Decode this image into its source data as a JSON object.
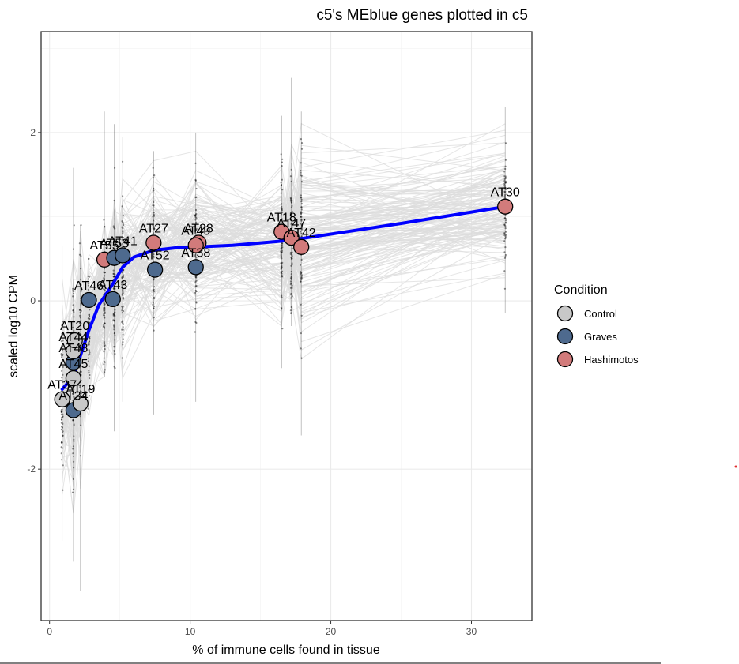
{
  "chart_data": {
    "type": "scatter",
    "title": "c5's MEblue genes plotted in c5",
    "xlabel": "% of immune cells found in tissue",
    "ylabel": "scaled log10 CPM",
    "xlim": [
      -0.6,
      34.3
    ],
    "ylim": [
      -3.8,
      3.2
    ],
    "xticks": [
      0,
      10,
      20,
      30
    ],
    "yticks": [
      -2,
      0,
      2
    ],
    "grid": true,
    "legend": {
      "title": "Condition",
      "position": "right",
      "entries": [
        {
          "name": "Control",
          "color": "#c8c8c8"
        },
        {
          "name": "Graves",
          "color": "#4e6a8e"
        },
        {
          "name": "Hashimotos",
          "color": "#d27b7b"
        }
      ]
    },
    "colors": {
      "trend": "#0000ff",
      "gene_lines": "#dcdcdc",
      "gene_points": "#000000"
    },
    "samples": [
      {
        "label": "AT37",
        "x": 0.9,
        "y": -1.17,
        "condition": "Control"
      },
      {
        "label": "AT34",
        "x": 1.7,
        "y": -1.3,
        "condition": "Graves"
      },
      {
        "label": "AT19",
        "x": 2.2,
        "y": -1.22,
        "condition": "Control"
      },
      {
        "label": "AT45",
        "x": 1.7,
        "y": -0.92,
        "condition": "Control"
      },
      {
        "label": "AT48",
        "x": 1.7,
        "y": -0.73,
        "condition": "Graves"
      },
      {
        "label": "AT44",
        "x": 1.7,
        "y": -0.6,
        "condition": "Control"
      },
      {
        "label": "AT20",
        "x": 1.8,
        "y": -0.47,
        "condition": "Control"
      },
      {
        "label": "AT46",
        "x": 2.8,
        "y": 0.01,
        "condition": "Graves"
      },
      {
        "label": "AT43",
        "x": 4.5,
        "y": 0.02,
        "condition": "Graves"
      },
      {
        "label": "AT55",
        "x": 3.9,
        "y": 0.49,
        "condition": "Hashimotos"
      },
      {
        "label": "AT53",
        "x": 4.6,
        "y": 0.51,
        "condition": "Graves"
      },
      {
        "label": "AT41",
        "x": 5.2,
        "y": 0.54,
        "condition": "Graves"
      },
      {
        "label": "AT27",
        "x": 7.4,
        "y": 0.69,
        "condition": "Hashimotos"
      },
      {
        "label": "AT52",
        "x": 7.5,
        "y": 0.37,
        "condition": "Graves"
      },
      {
        "label": "AT28",
        "x": 10.6,
        "y": 0.69,
        "condition": "Hashimotos"
      },
      {
        "label": "AT49",
        "x": 10.4,
        "y": 0.66,
        "condition": "Hashimotos"
      },
      {
        "label": "AT38",
        "x": 10.4,
        "y": 0.4,
        "condition": "Graves"
      },
      {
        "label": "AT18",
        "x": 16.5,
        "y": 0.82,
        "condition": "Hashimotos"
      },
      {
        "label": "AT47",
        "x": 17.2,
        "y": 0.75,
        "condition": "Hashimotos"
      },
      {
        "label": "AT42",
        "x": 17.9,
        "y": 0.64,
        "condition": "Hashimotos"
      },
      {
        "label": "AT30",
        "x": 32.4,
        "y": 1.12,
        "condition": "Hashimotos"
      }
    ],
    "trend": [
      [
        0.9,
        -1.05
      ],
      [
        1.7,
        -0.9
      ],
      [
        2.2,
        -0.65
      ],
      [
        2.8,
        -0.35
      ],
      [
        3.5,
        -0.05
      ],
      [
        4.5,
        0.2
      ],
      [
        5.2,
        0.4
      ],
      [
        6.0,
        0.52
      ],
      [
        7.4,
        0.6
      ],
      [
        9.0,
        0.63
      ],
      [
        10.5,
        0.64
      ],
      [
        13.0,
        0.66
      ],
      [
        16.5,
        0.71
      ],
      [
        17.9,
        0.74
      ],
      [
        25.0,
        0.92
      ],
      [
        32.4,
        1.12
      ]
    ],
    "gene_columns": [
      {
        "x": 0.9,
        "min": -2.85,
        "max": 0.65
      },
      {
        "x": 1.7,
        "min": -3.1,
        "max": 1.58
      },
      {
        "x": 2.2,
        "min": -3.45,
        "max": 0.9
      },
      {
        "x": 2.8,
        "min": -1.55,
        "max": 1.2
      },
      {
        "x": 3.9,
        "min": -0.9,
        "max": 2.25
      },
      {
        "x": 4.6,
        "min": -1.55,
        "max": 2.1
      },
      {
        "x": 5.2,
        "min": -1.2,
        "max": 1.95
      },
      {
        "x": 7.4,
        "min": -1.35,
        "max": 1.78
      },
      {
        "x": 10.4,
        "min": -1.2,
        "max": 2.0
      },
      {
        "x": 16.5,
        "min": -0.8,
        "max": 2.2
      },
      {
        "x": 17.2,
        "min": -0.3,
        "max": 2.65
      },
      {
        "x": 17.9,
        "min": -1.6,
        "max": 2.25
      },
      {
        "x": 32.4,
        "min": -0.15,
        "max": 2.3
      }
    ]
  }
}
